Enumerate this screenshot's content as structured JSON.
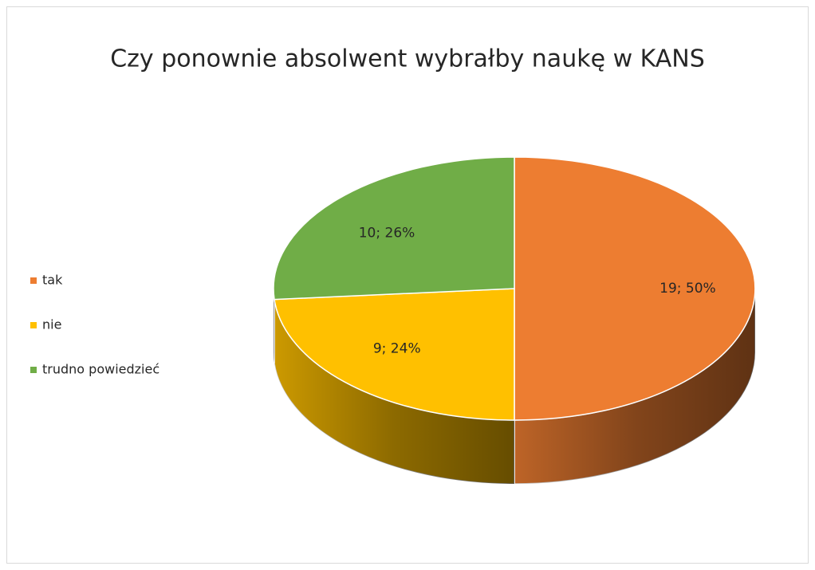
{
  "chart_data": {
    "type": "pie3d",
    "title": "Czy ponownie absolwent wybrałby naukę w KANS",
    "categories": [
      "tak",
      "nie",
      "trudno powiedzieć"
    ],
    "values": [
      19,
      9,
      10
    ],
    "value_labels": [
      "19; 50%",
      "9; 24%",
      "10; 26%"
    ],
    "colors": [
      "#ed7d31",
      "#ffc000",
      "#70ad47"
    ],
    "legend": "left"
  }
}
